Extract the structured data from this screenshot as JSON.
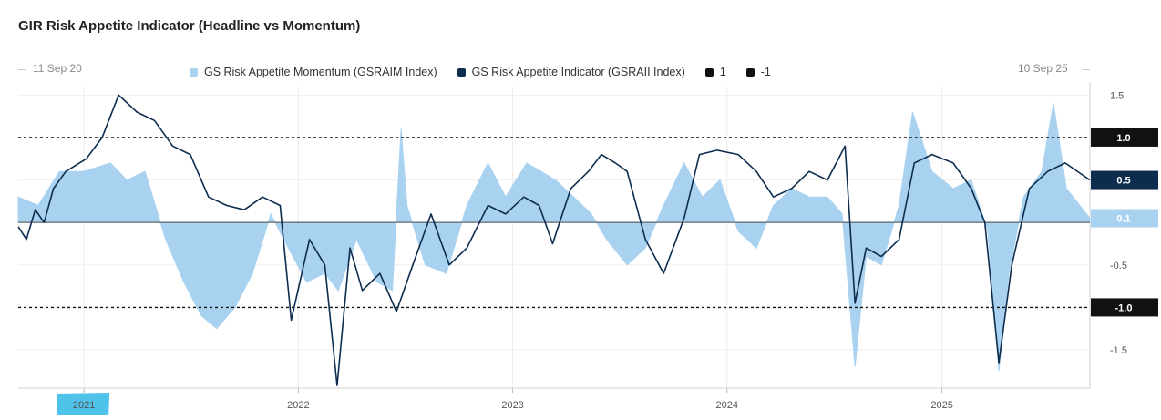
{
  "title": "GIR Risk Appetite Indicator (Headline vs Momentum)",
  "range": {
    "start": "11 Sep 20",
    "end": "10 Sep 25"
  },
  "colors": {
    "momentum": "#a8d2ef",
    "indicator": "#0d2c4e",
    "ref": "#111111",
    "highlight": "#4fc3ea",
    "current_indicator_tag": "#0d2c4e",
    "current_momentum_tag": "#a8d2ef"
  },
  "legend": [
    {
      "label": "GS Risk Appetite Momentum (GSRAIM Index)",
      "color": "#a8d2ef"
    },
    {
      "label": "GS Risk Appetite Indicator (GSRAII Index)",
      "color": "#0d2c4e"
    },
    {
      "label": "1",
      "color": "#111111"
    },
    {
      "label": "-1",
      "color": "#111111"
    }
  ],
  "chart_data": {
    "type": "area",
    "title": "GIR Risk Appetite Indicator (Headline vs Momentum)",
    "xlabel": "",
    "ylabel": "",
    "x_range": [
      "11 Sep 20",
      "10 Sep 25"
    ],
    "x_ticks": [
      "2021",
      "2022",
      "2023",
      "2024",
      "2025"
    ],
    "y_ticks": [
      "1.5",
      "-0.5",
      "-1.5"
    ],
    "ylim": [
      -1.95,
      1.6
    ],
    "reference_lines": [
      {
        "name": "1",
        "value": 1.0
      },
      {
        "name": "-1",
        "value": -1.0
      }
    ],
    "current_value_tags": [
      {
        "label": "1.0",
        "value": 1.0,
        "style": "dark"
      },
      {
        "label": "0.5",
        "value": 0.5,
        "style": "navy"
      },
      {
        "label": "0.1",
        "value": 0.05,
        "style": "light"
      },
      {
        "label": "-1.0",
        "value": -1.0,
        "style": "dark"
      }
    ],
    "series": [
      {
        "name": "GS Risk Appetite Momentum (GSRAIM Index)",
        "style": "area",
        "points": [
          [
            "2020-09-11",
            0.3
          ],
          [
            "2020-10-15",
            0.2
          ],
          [
            "2020-11-20",
            0.6
          ],
          [
            "2020-12-31",
            0.6
          ],
          [
            "2021-02-15",
            0.7
          ],
          [
            "2021-03-15",
            0.5
          ],
          [
            "2021-04-15",
            0.6
          ],
          [
            "2021-05-20",
            -0.2
          ],
          [
            "2021-06-20",
            -0.7
          ],
          [
            "2021-07-20",
            -1.1
          ],
          [
            "2021-08-15",
            -1.25
          ],
          [
            "2021-09-15",
            -1.0
          ],
          [
            "2021-10-15",
            -0.6
          ],
          [
            "2021-11-15",
            0.1
          ],
          [
            "2021-12-15",
            -0.3
          ],
          [
            "2022-01-15",
            -0.7
          ],
          [
            "2022-02-15",
            -0.6
          ],
          [
            "2022-03-10",
            -0.8
          ],
          [
            "2022-04-10",
            -0.2
          ],
          [
            "2022-05-15",
            -0.7
          ],
          [
            "2022-06-10",
            -0.8
          ],
          [
            "2022-06-25",
            1.1
          ],
          [
            "2022-07-05",
            0.2
          ],
          [
            "2022-08-05",
            -0.5
          ],
          [
            "2022-09-10",
            -0.6
          ],
          [
            "2022-10-15",
            0.2
          ],
          [
            "2022-11-20",
            0.7
          ],
          [
            "2022-12-20",
            0.3
          ],
          [
            "2023-01-25",
            0.7
          ],
          [
            "2023-03-15",
            0.5
          ],
          [
            "2023-04-15",
            0.3
          ],
          [
            "2023-05-15",
            0.1
          ],
          [
            "2023-06-10",
            -0.2
          ],
          [
            "2023-07-15",
            -0.5
          ],
          [
            "2023-08-15",
            -0.3
          ],
          [
            "2023-09-15",
            0.2
          ],
          [
            "2023-10-20",
            0.7
          ],
          [
            "2023-11-20",
            0.3
          ],
          [
            "2023-12-20",
            0.5
          ],
          [
            "2024-01-20",
            -0.1
          ],
          [
            "2024-02-20",
            -0.3
          ],
          [
            "2024-03-20",
            0.2
          ],
          [
            "2024-04-20",
            0.4
          ],
          [
            "2024-05-20",
            0.3
          ],
          [
            "2024-06-20",
            0.3
          ],
          [
            "2024-07-15",
            0.1
          ],
          [
            "2024-08-06",
            -1.7
          ],
          [
            "2024-08-25",
            -0.4
          ],
          [
            "2024-09-20",
            -0.5
          ],
          [
            "2024-10-20",
            0.2
          ],
          [
            "2024-11-12",
            1.3
          ],
          [
            "2024-12-15",
            0.6
          ],
          [
            "2025-01-20",
            0.4
          ],
          [
            "2025-02-20",
            0.5
          ],
          [
            "2025-03-20",
            -0.1
          ],
          [
            "2025-04-08",
            -1.75
          ],
          [
            "2025-04-25",
            -0.6
          ],
          [
            "2025-05-20",
            0.3
          ],
          [
            "2025-06-20",
            0.6
          ],
          [
            "2025-07-10",
            1.4
          ],
          [
            "2025-08-01",
            0.4
          ],
          [
            "2025-09-10",
            0.05
          ]
        ]
      },
      {
        "name": "GS Risk Appetite Indicator (GSRAII Index)",
        "style": "line",
        "points": [
          [
            "2020-09-11",
            -0.05
          ],
          [
            "2020-09-25",
            -0.2
          ],
          [
            "2020-10-10",
            0.15
          ],
          [
            "2020-10-25",
            0.0
          ],
          [
            "2020-11-10",
            0.4
          ],
          [
            "2020-12-01",
            0.6
          ],
          [
            "2021-01-05",
            0.75
          ],
          [
            "2021-02-01",
            1.0
          ],
          [
            "2021-03-01",
            1.5
          ],
          [
            "2021-04-01",
            1.3
          ],
          [
            "2021-05-01",
            1.2
          ],
          [
            "2021-06-01",
            0.9
          ],
          [
            "2021-07-01",
            0.8
          ],
          [
            "2021-08-01",
            0.3
          ],
          [
            "2021-09-01",
            0.2
          ],
          [
            "2021-10-01",
            0.15
          ],
          [
            "2021-11-01",
            0.3
          ],
          [
            "2021-12-01",
            0.2
          ],
          [
            "2021-12-20",
            -1.15
          ],
          [
            "2022-01-20",
            -0.2
          ],
          [
            "2022-02-15",
            -0.5
          ],
          [
            "2022-03-08",
            -1.92
          ],
          [
            "2022-03-30",
            -0.3
          ],
          [
            "2022-04-20",
            -0.8
          ],
          [
            "2022-05-20",
            -0.6
          ],
          [
            "2022-06-17",
            -1.05
          ],
          [
            "2022-07-15",
            -0.5
          ],
          [
            "2022-08-15",
            0.1
          ],
          [
            "2022-09-15",
            -0.5
          ],
          [
            "2022-10-15",
            -0.3
          ],
          [
            "2022-11-20",
            0.2
          ],
          [
            "2022-12-20",
            0.1
          ],
          [
            "2023-01-20",
            0.3
          ],
          [
            "2023-02-15",
            0.2
          ],
          [
            "2023-03-10",
            -0.25
          ],
          [
            "2023-04-10",
            0.4
          ],
          [
            "2023-05-10",
            0.6
          ],
          [
            "2023-06-01",
            0.8
          ],
          [
            "2023-06-25",
            0.7
          ],
          [
            "2023-07-15",
            0.6
          ],
          [
            "2023-08-15",
            -0.2
          ],
          [
            "2023-09-15",
            -0.6
          ],
          [
            "2023-10-20",
            0.05
          ],
          [
            "2023-11-15",
            0.8
          ],
          [
            "2023-12-15",
            0.85
          ],
          [
            "2024-01-20",
            0.8
          ],
          [
            "2024-02-20",
            0.6
          ],
          [
            "2024-03-20",
            0.3
          ],
          [
            "2024-04-20",
            0.4
          ],
          [
            "2024-05-20",
            0.6
          ],
          [
            "2024-06-20",
            0.5
          ],
          [
            "2024-07-20",
            0.9
          ],
          [
            "2024-08-06",
            -0.95
          ],
          [
            "2024-08-25",
            -0.3
          ],
          [
            "2024-09-20",
            -0.4
          ],
          [
            "2024-10-20",
            -0.2
          ],
          [
            "2024-11-15",
            0.7
          ],
          [
            "2024-12-15",
            0.8
          ],
          [
            "2025-01-20",
            0.7
          ],
          [
            "2025-02-20",
            0.4
          ],
          [
            "2025-03-15",
            0.0
          ],
          [
            "2025-04-08",
            -1.65
          ],
          [
            "2025-04-30",
            -0.5
          ],
          [
            "2025-05-30",
            0.4
          ],
          [
            "2025-06-30",
            0.6
          ],
          [
            "2025-07-30",
            0.7
          ],
          [
            "2025-09-10",
            0.5
          ]
        ]
      }
    ]
  }
}
